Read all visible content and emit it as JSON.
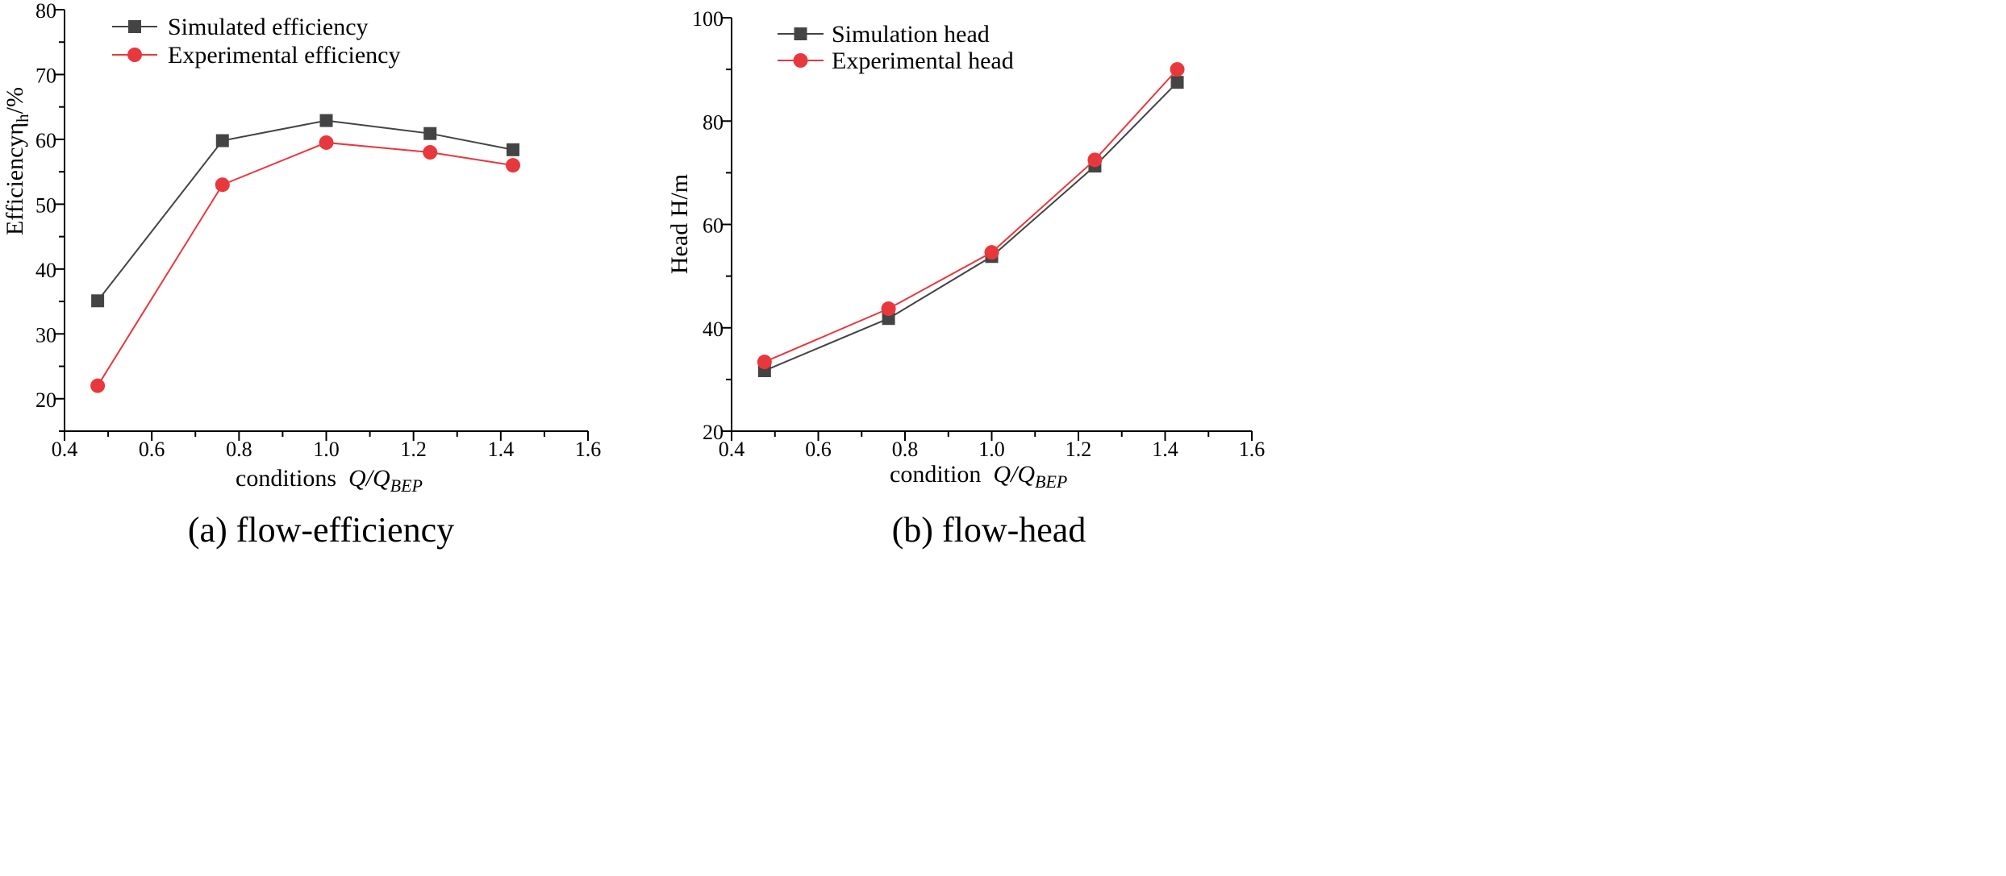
{
  "chart_data": [
    {
      "type": "line",
      "caption": "(a) flow-efficiency",
      "xlabel_prefix": "conditions",
      "xlabel_math": {
        "base": "Q/Q",
        "sub": "BEP"
      },
      "ylabel_prefix": "Efficiencyη",
      "ylabel_sub": "h",
      "ylabel_suffix": "/%",
      "xlim": [
        0.4,
        1.6
      ],
      "ylim": [
        15,
        80
      ],
      "xticks": [
        0.4,
        0.6,
        0.8,
        1.0,
        1.2,
        1.4,
        1.6
      ],
      "xtick_labels": [
        "0.4",
        "0.6",
        "0.8",
        "1.0",
        "1.2",
        "1.4",
        "1.6"
      ],
      "yticks": [
        20,
        30,
        40,
        50,
        60,
        70,
        80
      ],
      "ytick_labels": [
        "20",
        "30",
        "40",
        "50",
        "60",
        "70",
        "80"
      ],
      "legend_position": "top-left",
      "series": [
        {
          "name": "Simulated efficiency",
          "marker": "square",
          "color": "#444444",
          "x": [
            0.476,
            0.762,
            1.0,
            1.238,
            1.428
          ],
          "values": [
            35.1,
            59.8,
            62.9,
            60.9,
            58.4
          ]
        },
        {
          "name": "Experimental efficiency",
          "marker": "circle",
          "color": "#e8383d",
          "x": [
            0.476,
            0.762,
            1.0,
            1.238,
            1.428
          ],
          "values": [
            22.0,
            53.0,
            59.5,
            58.0,
            56.0
          ]
        }
      ]
    },
    {
      "type": "line",
      "caption": "(b) flow-head",
      "xlabel_prefix": "condition",
      "xlabel_math": {
        "base": "Q/Q",
        "sub": "BEP"
      },
      "ylabel": "Head  H/m",
      "xlim": [
        0.4,
        1.6
      ],
      "ylim": [
        20,
        100
      ],
      "xticks": [
        0.4,
        0.6,
        0.8,
        1.0,
        1.2,
        1.4,
        1.6
      ],
      "xtick_labels": [
        "0.4",
        "0.6",
        "0.8",
        "1.0",
        "1.2",
        "1.4",
        "1.6"
      ],
      "yticks": [
        20,
        40,
        60,
        80,
        100
      ],
      "ytick_labels": [
        "20",
        "40",
        "60",
        "80",
        "100"
      ],
      "legend_position": "top-left",
      "series": [
        {
          "name": "Simulation head",
          "marker": "square",
          "color": "#444444",
          "x": [
            0.476,
            0.762,
            1.0,
            1.238,
            1.428
          ],
          "values": [
            31.7,
            41.8,
            53.8,
            71.3,
            87.5
          ]
        },
        {
          "name": "Experimental head",
          "marker": "circle",
          "color": "#e8383d",
          "x": [
            0.476,
            0.762,
            1.0,
            1.238,
            1.428
          ],
          "values": [
            33.4,
            43.7,
            54.6,
            72.5,
            90.0
          ]
        }
      ]
    }
  ]
}
